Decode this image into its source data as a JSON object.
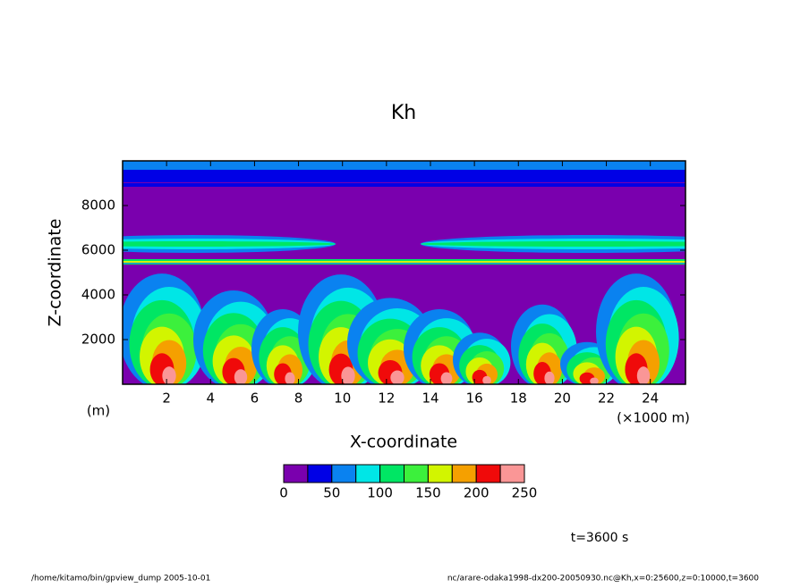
{
  "chart_data": {
    "type": "contour",
    "title": "Kh",
    "xlabel": "X-coordinate",
    "ylabel": "Z-coordinate",
    "x_unit": "(×1000 m)",
    "y_unit": "(m)",
    "xlim": [
      0,
      25.6
    ],
    "ylim": [
      0,
      10000
    ],
    "xticks": [
      2,
      4,
      6,
      8,
      10,
      12,
      14,
      16,
      18,
      20,
      22,
      24
    ],
    "yticks": [
      2000,
      4000,
      6000,
      8000
    ],
    "levels": [
      0,
      25,
      50,
      75,
      100,
      125,
      150,
      175,
      200,
      225,
      250
    ],
    "colorbar_ticks": [
      0,
      50,
      100,
      150,
      200,
      250
    ],
    "colors": [
      "#7a00ae",
      "#0000e6",
      "#0a82f0",
      "#00e6e6",
      "#00e664",
      "#3cf03c",
      "#d2f500",
      "#f5a000",
      "#f00a0a",
      "#fa9696"
    ],
    "time_label": "t=3600 s",
    "footer_left": "/home/kitamo/bin/gpview_dump  2005-10-01",
    "footer_right": "nc/arare-odaka1998-dx200-20050930.nc@Kh,x=0:25600,z=0:10000,t=3600"
  }
}
